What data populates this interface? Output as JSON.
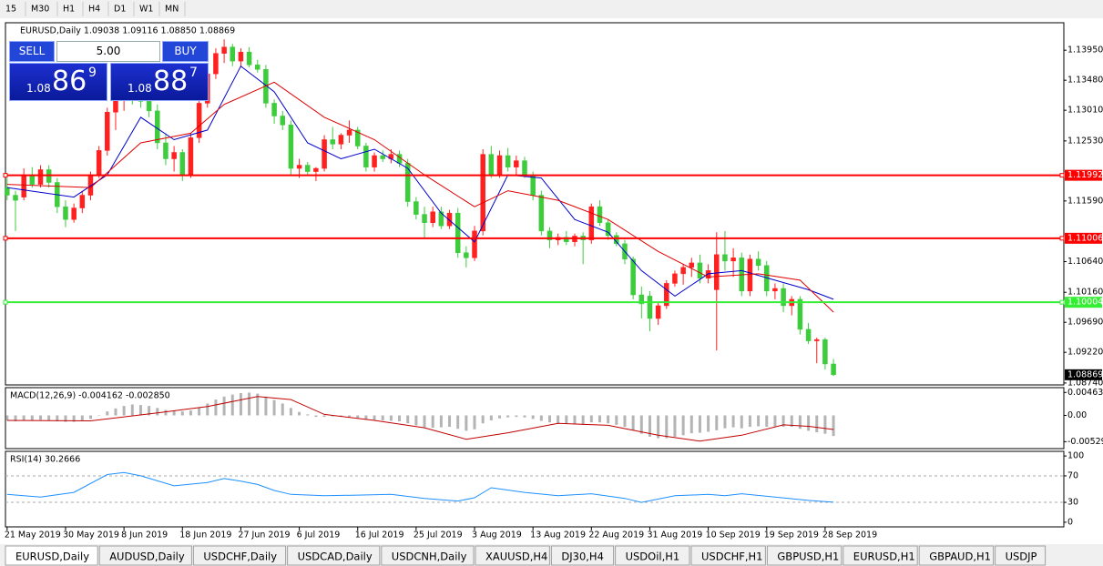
{
  "toolbar": {
    "timeframes": [
      "15",
      "M30",
      "H1",
      "H4",
      "D1",
      "W1",
      "MN"
    ]
  },
  "trade_panel": {
    "sell": "SELL",
    "lot": "5.00",
    "buy": "BUY",
    "bid_prefix": "1.08",
    "bid_big": "86",
    "bid_small": "9",
    "ask_prefix": "1.08",
    "ask_big": "88",
    "ask_small": "7"
  },
  "chart_data": [
    {
      "type": "candlestick",
      "title": "EURUSD,Daily 1.09038 1.09116 1.08850 1.08869",
      "up_color": "#ff2020",
      "down_color": "#3ccc3c",
      "xlim": [
        -0.2,
        126.6
      ],
      "ylim": [
        1.0871,
        1.1438
      ],
      "yticks": [
        {
          "value": 1.1395,
          "label": "1.13950"
        },
        {
          "value": 1.1348,
          "label": "1.13480"
        },
        {
          "value": 1.1301,
          "label": "1.13010"
        },
        {
          "value": 1.1253,
          "label": "1.12530"
        },
        {
          "value": 1.1159,
          "label": "1.11590"
        },
        {
          "value": 1.1064,
          "label": "1.10640"
        },
        {
          "value": 1.1016,
          "label": "1.10160"
        },
        {
          "value": 1.0969,
          "label": "1.09690"
        },
        {
          "value": 1.0922,
          "label": "1.09220"
        },
        {
          "value": 1.0874,
          "label": "1.08740"
        }
      ],
      "xticks": [
        {
          "value": 0,
          "label": "21 May 2019"
        },
        {
          "value": 7,
          "label": "30 May 2019"
        },
        {
          "value": 14,
          "label": "8 Jun 2019"
        },
        {
          "value": 21,
          "label": "18 Jun 2019"
        },
        {
          "value": 28,
          "label": "27 Jun 2019"
        },
        {
          "value": 35,
          "label": "6 Jul 2019"
        },
        {
          "value": 42,
          "label": "16 Jul 2019"
        },
        {
          "value": 49,
          "label": "25 Jul 2019"
        },
        {
          "value": 56,
          "label": "3 Aug 2019"
        },
        {
          "value": 63,
          "label": "13 Aug 2019"
        },
        {
          "value": 70,
          "label": "22 Aug 2019"
        },
        {
          "value": 77,
          "label": "31 Aug 2019"
        },
        {
          "value": 84,
          "label": "10 Sep 2019"
        },
        {
          "value": 91,
          "label": "19 Sep 2019"
        },
        {
          "value": 98,
          "label": "28 Sep 2019"
        }
      ],
      "candles": [
        [
          1.118,
          1.1195,
          1.116,
          1.1168
        ],
        [
          1.1168,
          1.1175,
          1.1112,
          1.116
        ],
        [
          1.1165,
          1.121,
          1.116,
          1.12
        ],
        [
          1.12,
          1.1212,
          1.118,
          1.1185
        ],
        [
          1.1185,
          1.1215,
          1.118,
          1.1208
        ],
        [
          1.1208,
          1.1215,
          1.118,
          1.1188
        ],
        [
          1.1188,
          1.1195,
          1.114,
          1.115
        ],
        [
          1.115,
          1.116,
          1.1118,
          1.113
        ],
        [
          1.113,
          1.1155,
          1.1125,
          1.1148
        ],
        [
          1.1148,
          1.1175,
          1.114,
          1.1168
        ],
        [
          1.1168,
          1.1205,
          1.116,
          1.12
        ],
        [
          1.12,
          1.1245,
          1.1195,
          1.1238
        ],
        [
          1.1238,
          1.1305,
          1.123,
          1.1298
        ],
        [
          1.1298,
          1.133,
          1.127,
          1.1318
        ],
        [
          1.1318,
          1.1345,
          1.13,
          1.133
        ],
        [
          1.133,
          1.135,
          1.131,
          1.132
        ],
        [
          1.132,
          1.1335,
          1.1305,
          1.1315
        ],
        [
          1.1315,
          1.133,
          1.129,
          1.13
        ],
        [
          1.13,
          1.131,
          1.124,
          1.125
        ],
        [
          1.125,
          1.1265,
          1.1215,
          1.1225
        ],
        [
          1.1225,
          1.1245,
          1.1205,
          1.1235
        ],
        [
          1.1235,
          1.124,
          1.119,
          1.12
        ],
        [
          1.12,
          1.1265,
          1.1195,
          1.1258
        ],
        [
          1.1258,
          1.132,
          1.125,
          1.1312
        ],
        [
          1.1312,
          1.1365,
          1.1305,
          1.1358
        ],
        [
          1.1358,
          1.1398,
          1.135,
          1.139
        ],
        [
          1.139,
          1.1412,
          1.1375,
          1.14
        ],
        [
          1.14,
          1.1405,
          1.137,
          1.1378
        ],
        [
          1.1378,
          1.1398,
          1.1368,
          1.1392
        ],
        [
          1.1392,
          1.14,
          1.1368,
          1.1372
        ],
        [
          1.1372,
          1.138,
          1.136,
          1.1365
        ],
        [
          1.1365,
          1.1372,
          1.1305,
          1.1312
        ],
        [
          1.1312,
          1.1318,
          1.128,
          1.1292
        ],
        [
          1.1292,
          1.13,
          1.127,
          1.1278
        ],
        [
          1.1278,
          1.1285,
          1.12,
          1.121
        ],
        [
          1.121,
          1.1225,
          1.1195,
          1.1215
        ],
        [
          1.1215,
          1.122,
          1.12,
          1.1205
        ],
        [
          1.1205,
          1.1212,
          1.119,
          1.121
        ],
        [
          1.121,
          1.1262,
          1.1205,
          1.1255
        ],
        [
          1.1255,
          1.1275,
          1.124,
          1.1248
        ],
        [
          1.1248,
          1.1265,
          1.124,
          1.1262
        ],
        [
          1.1262,
          1.1285,
          1.125,
          1.127
        ],
        [
          1.127,
          1.1275,
          1.124,
          1.1245
        ],
        [
          1.1245,
          1.125,
          1.1205,
          1.1212
        ],
        [
          1.1212,
          1.1235,
          1.1205,
          1.123
        ],
        [
          1.123,
          1.1238,
          1.122,
          1.1225
        ],
        [
          1.1225,
          1.124,
          1.1218,
          1.1232
        ],
        [
          1.1232,
          1.1238,
          1.1212,
          1.1218
        ],
        [
          1.1218,
          1.1225,
          1.115,
          1.1158
        ],
        [
          1.1158,
          1.1165,
          1.113,
          1.1138
        ],
        [
          1.1138,
          1.115,
          1.11,
          1.1125
        ],
        [
          1.1125,
          1.115,
          1.1118,
          1.1142
        ],
        [
          1.1142,
          1.115,
          1.1115,
          1.112
        ],
        [
          1.112,
          1.1145,
          1.1115,
          1.114
        ],
        [
          1.114,
          1.1148,
          1.107,
          1.1078
        ],
        [
          1.1078,
          1.1088,
          1.1055,
          1.107
        ],
        [
          1.107,
          1.112,
          1.1065,
          1.1112
        ],
        [
          1.1112,
          1.124,
          1.1105,
          1.1232
        ],
        [
          1.1232,
          1.1245,
          1.1195,
          1.12
        ],
        [
          1.12,
          1.1238,
          1.1195,
          1.123
        ],
        [
          1.123,
          1.1242,
          1.1205,
          1.1212
        ],
        [
          1.1212,
          1.123,
          1.12,
          1.1222
        ],
        [
          1.1222,
          1.1228,
          1.1195,
          1.12
        ],
        [
          1.12,
          1.1205,
          1.116,
          1.1168
        ],
        [
          1.1168,
          1.1175,
          1.1105,
          1.1112
        ],
        [
          1.1112,
          1.1118,
          1.1085,
          1.1098
        ],
        [
          1.1098,
          1.1108,
          1.109,
          1.1102
        ],
        [
          1.1102,
          1.1112,
          1.109,
          1.1095
        ],
        [
          1.1095,
          1.1108,
          1.1088,
          1.1104
        ],
        [
          1.1104,
          1.111,
          1.106,
          1.1098
        ],
        [
          1.1098,
          1.1155,
          1.1092,
          1.115
        ],
        [
          1.115,
          1.116,
          1.112,
          1.1125
        ],
        [
          1.1125,
          1.113,
          1.1098,
          1.1105
        ],
        [
          1.1105,
          1.111,
          1.1088,
          1.1092
        ],
        [
          1.1092,
          1.1098,
          1.106,
          1.1068
        ],
        [
          1.1068,
          1.1072,
          1.1005,
          1.1012
        ],
        [
          1.1012,
          1.1025,
          1.0975,
          1.0998
        ],
        [
          1.101,
          1.1018,
          1.0955,
          1.0975
        ],
        [
          1.0975,
          1.1,
          1.0965,
          1.0995
        ],
        [
          1.0995,
          1.1035,
          1.099,
          1.103
        ],
        [
          1.103,
          1.105,
          1.1025,
          1.1045
        ],
        [
          1.1045,
          1.106,
          1.1028,
          1.1055
        ],
        [
          1.1055,
          1.107,
          1.104,
          1.1062
        ],
        [
          1.1062,
          1.1075,
          1.103,
          1.1038
        ],
        [
          1.1038,
          1.106,
          1.103,
          1.105
        ],
        [
          1.102,
          1.111,
          1.0925,
          1.1075
        ],
        [
          1.1075,
          1.1112,
          1.105,
          1.1065
        ],
        [
          1.1065,
          1.1085,
          1.104,
          1.107
        ],
        [
          1.107,
          1.1078,
          1.101,
          1.1018
        ],
        [
          1.1018,
          1.1075,
          1.101,
          1.1068
        ],
        [
          1.1068,
          1.108,
          1.105,
          1.1058
        ],
        [
          1.1058,
          1.1065,
          1.101,
          1.1018
        ],
        [
          1.1018,
          1.103,
          1.1005,
          1.1022
        ],
        [
          1.1022,
          1.103,
          1.0985,
          1.0995
        ],
        [
          1.0995,
          1.101,
          1.098,
          1.1005
        ],
        [
          1.1005,
          1.101,
          1.095,
          1.0958
        ],
        [
          1.0958,
          1.0968,
          1.0935,
          1.094
        ],
        [
          1.094,
          1.0945,
          1.0905,
          1.0942
        ],
        [
          1.0942,
          1.0945,
          1.0895,
          1.09038
        ],
        [
          1.09038,
          1.09116,
          1.0885,
          1.08869
        ]
      ],
      "overlays": [
        {
          "color": "#0000cd",
          "x": [
            0,
            8,
            12,
            16,
            20,
            24,
            28,
            32,
            36,
            40,
            44,
            48,
            52,
            56,
            60,
            64,
            68,
            72,
            76,
            80,
            84,
            88,
            92,
            96,
            99
          ],
          "values": [
            1.118,
            1.1165,
            1.12,
            1.129,
            1.1255,
            1.127,
            1.137,
            1.133,
            1.125,
            1.1225,
            1.124,
            1.121,
            1.114,
            1.1095,
            1.12,
            1.1195,
            1.113,
            1.111,
            1.105,
            1.101,
            1.1045,
            1.105,
            1.1035,
            1.102,
            1.1005
          ]
        },
        {
          "color": "#e00000",
          "x": [
            0,
            10,
            16,
            22,
            26,
            32,
            38,
            44,
            50,
            56,
            60,
            66,
            72,
            78,
            84,
            90,
            95,
            99
          ],
          "values": [
            1.1185,
            1.118,
            1.125,
            1.1265,
            1.131,
            1.1345,
            1.129,
            1.1255,
            1.12,
            1.115,
            1.1175,
            1.116,
            1.113,
            1.108,
            1.104,
            1.1045,
            1.1035,
            1.0985
          ]
        }
      ],
      "hlines": [
        {
          "value": 1.11992,
          "color": "#ff0000"
        },
        {
          "value": 1.11006,
          "color": "#ff0000"
        },
        {
          "value": 1.10004,
          "color": "#33ee33"
        }
      ]
    },
    {
      "type": "bar",
      "title": "MACD(12,26,9) -0.004162 -0.002850",
      "xlim": [
        -0.2,
        126.6
      ],
      "ylim": [
        -0.0067,
        0.0056
      ],
      "yticks": [
        0.00463,
        {
          "value": 0,
          "label": "0.00"
        },
        -0.005299
      ],
      "color": "#b4b4b4",
      "values": [
        -0.001,
        -0.0012,
        -0.0011,
        -0.001,
        -0.0009,
        -0.001,
        -0.0012,
        -0.0013,
        -0.0013,
        -0.0011,
        -0.0007,
        0.0,
        0.0008,
        0.0014,
        0.0019,
        0.0022,
        0.0021,
        0.0019,
        0.0015,
        0.0011,
        0.0009,
        0.0008,
        0.001,
        0.0016,
        0.0024,
        0.0032,
        0.0038,
        0.0042,
        0.0045,
        0.0046,
        0.0044,
        0.0038,
        0.0031,
        0.0024,
        0.0015,
        0.0007,
        0.0002,
        -0.0003,
        -0.0003,
        -0.0002,
        -0.0002,
        -0.0003,
        -0.0005,
        -0.0008,
        -0.0009,
        -0.001,
        -0.0011,
        -0.0012,
        -0.0016,
        -0.002,
        -0.0024,
        -0.0025,
        -0.0024,
        -0.0023,
        -0.0027,
        -0.0031,
        -0.0028,
        -0.0016,
        -0.001,
        -0.0006,
        -0.0004,
        -0.0003,
        -0.0004,
        -0.0007,
        -0.0011,
        -0.0014,
        -0.0016,
        -0.0017,
        -0.0018,
        -0.0019,
        -0.0014,
        -0.0014,
        -0.0016,
        -0.0019,
        -0.0023,
        -0.003,
        -0.0037,
        -0.0043,
        -0.0046,
        -0.0046,
        -0.0043,
        -0.004,
        -0.0036,
        -0.0035,
        -0.0033,
        -0.003,
        -0.0026,
        -0.0024,
        -0.0026,
        -0.0023,
        -0.0022,
        -0.0023,
        -0.0022,
        -0.0023,
        -0.0023,
        -0.0027,
        -0.0031,
        -0.0034,
        -0.0037,
        -0.004162
      ],
      "overlays": [
        {
          "color": "#c00000",
          "x": [
            0,
            10,
            18,
            24,
            30,
            34,
            38,
            44,
            50,
            55,
            60,
            66,
            72,
            78,
            83,
            88,
            93,
            96,
            99
          ],
          "values": [
            -0.001,
            -0.0011,
            0.0005,
            0.0018,
            0.0038,
            0.0032,
            0.0002,
            -0.001,
            -0.0025,
            -0.0048,
            -0.0035,
            -0.0016,
            -0.002,
            -0.004,
            -0.0052,
            -0.004,
            -0.0019,
            -0.0022,
            -0.00285
          ]
        }
      ]
    },
    {
      "type": "line",
      "title": "RSI(14) 30.2666",
      "xlim": [
        -0.2,
        126.6
      ],
      "ylim": [
        -7,
        107
      ],
      "yticks": [
        100,
        70,
        30,
        0
      ],
      "levels": [
        70,
        30
      ],
      "color": "#1e90ff",
      "x": [
        0,
        4,
        8,
        12,
        14,
        16,
        20,
        24,
        26,
        28,
        30,
        32,
        34,
        38,
        42,
        46,
        50,
        54,
        56,
        58,
        62,
        66,
        70,
        74,
        76,
        80,
        84,
        86,
        88,
        92,
        96,
        99
      ],
      "values": [
        42,
        38,
        45,
        72,
        75,
        70,
        55,
        60,
        66,
        62,
        57,
        48,
        42,
        40,
        41,
        42,
        36,
        32,
        37,
        52,
        45,
        40,
        43,
        36,
        30,
        40,
        42,
        40,
        43,
        38,
        33,
        30.2666
      ]
    }
  ],
  "tabs": [
    "EURUSD,Daily",
    "AUDUSD,Daily",
    "USDCHF,Daily",
    "USDCAD,Daily",
    "USDCNH,Daily",
    "XAUUSD,H4",
    "DJ30,H4",
    "USDOil,H1",
    "USDCHF,H1",
    "GBPUSD,H1",
    "EURUSD,H1",
    "GBPAUD,H1",
    "USDJP"
  ]
}
